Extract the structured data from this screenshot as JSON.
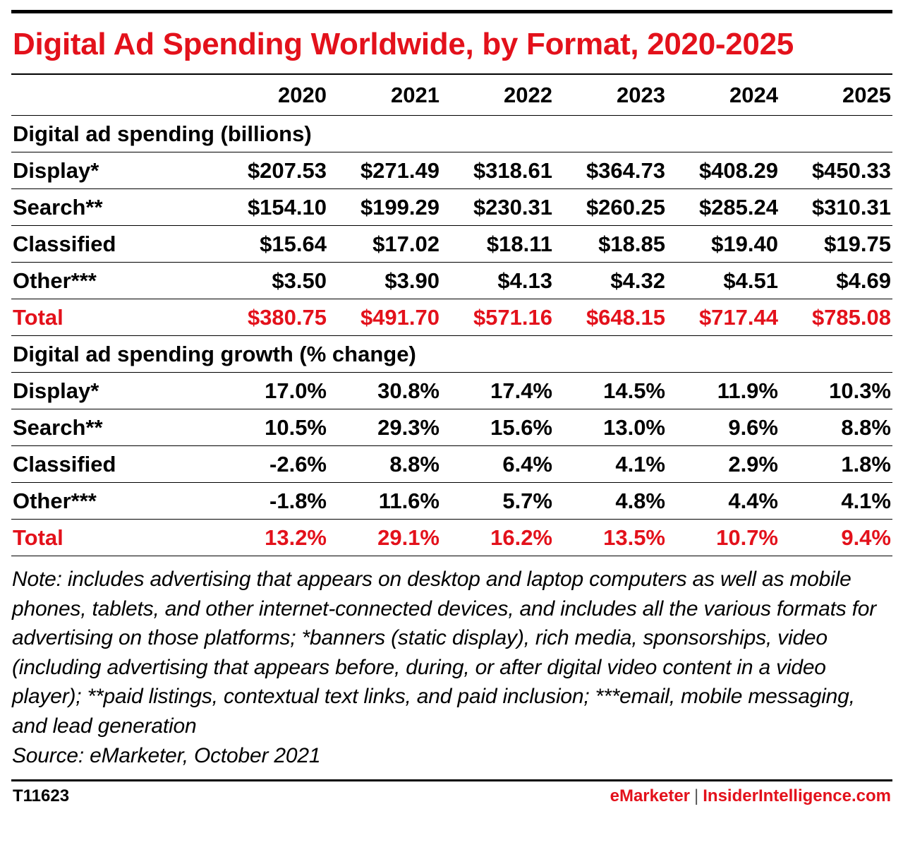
{
  "title": "Digital Ad Spending Worldwide, by Format, 2020-2025",
  "chart_data": {
    "type": "table",
    "title": "Digital Ad Spending Worldwide, by Format, 2020-2025",
    "columns": [
      "2020",
      "2021",
      "2022",
      "2023",
      "2024",
      "2025"
    ],
    "sections": [
      {
        "heading": "Digital ad spending (billions)",
        "rows": [
          {
            "label": "Display*",
            "values": [
              "$207.53",
              "$271.49",
              "$318.61",
              "$364.73",
              "$408.29",
              "$450.33"
            ]
          },
          {
            "label": "Search**",
            "values": [
              "$154.10",
              "$199.29",
              "$230.31",
              "$260.25",
              "$285.24",
              "$310.31"
            ]
          },
          {
            "label": "Classified",
            "values": [
              "$15.64",
              "$17.02",
              "$18.11",
              "$18.85",
              "$19.40",
              "$19.75"
            ]
          },
          {
            "label": "Other***",
            "values": [
              "$3.50",
              "$3.90",
              "$4.13",
              "$4.32",
              "$4.51",
              "$4.69"
            ]
          },
          {
            "label": "Total",
            "values": [
              "$380.75",
              "$491.70",
              "$571.16",
              "$648.15",
              "$717.44",
              "$785.08"
            ]
          }
        ]
      },
      {
        "heading": "Digital ad spending growth (% change)",
        "rows": [
          {
            "label": "Display*",
            "values": [
              "17.0%",
              "30.8%",
              "17.4%",
              "14.5%",
              "11.9%",
              "10.3%"
            ]
          },
          {
            "label": "Search**",
            "values": [
              "10.5%",
              "29.3%",
              "15.6%",
              "13.0%",
              "9.6%",
              "8.8%"
            ]
          },
          {
            "label": "Classified",
            "values": [
              "-2.6%",
              "8.8%",
              "6.4%",
              "4.1%",
              "2.9%",
              "1.8%"
            ]
          },
          {
            "label": "Other***",
            "values": [
              "-1.8%",
              "11.6%",
              "5.7%",
              "4.8%",
              "4.4%",
              "4.1%"
            ]
          },
          {
            "label": "Total",
            "values": [
              "13.2%",
              "29.1%",
              "16.2%",
              "13.5%",
              "10.7%",
              "9.4%"
            ]
          }
        ]
      }
    ]
  },
  "note": "Note: includes advertising that appears on desktop and laptop computers as well as mobile phones, tablets, and other internet-connected devices, and includes all the various formats for advertising on those platforms; *banners (static display), rich media, sponsorships, video (including advertising that appears before, during, or after digital video content in a video player); **paid listings, contextual text links, and paid inclusion; ***email, mobile messaging, and lead generation",
  "source": "Source: eMarketer, October 2021",
  "footer": {
    "code": "T11623",
    "brand_left": "eMarketer",
    "separator": "|",
    "brand_right": "InsiderIntelligence.com"
  },
  "colors": {
    "accent_red": "#e3111b",
    "text": "#000000",
    "background": "#ffffff"
  }
}
